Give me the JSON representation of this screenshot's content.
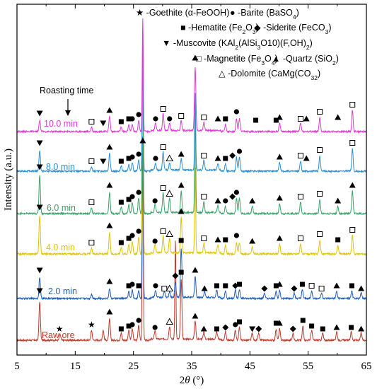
{
  "chart_data": {
    "type": "line",
    "xlabel": "2θ (°)",
    "xlabel_italic_symbol": "θ",
    "ylabel": "Intensity (a.u.)",
    "xlim": [
      5,
      65
    ],
    "xticks": [
      "5",
      "15",
      "25",
      "35",
      "45",
      "55",
      "65"
    ],
    "annotation": "Roasting time",
    "legend": [
      {
        "marker": "★",
        "text": "-Goethite (α-FeOOH)"
      },
      {
        "marker": "●",
        "text": "-Barite (BaSO",
        "sub": "4",
        "tail": ")"
      },
      {
        "marker": "■",
        "text": "-Hematite (Fe",
        "sub": "2",
        "mid": "O",
        "sub2": "3",
        "tail": ")"
      },
      {
        "marker": "◆",
        "text": "-Siderite (FeCO",
        "sub": "3",
        "tail": ")"
      },
      {
        "marker": "▼",
        "text": "-Muscovite (KAl",
        "sub": "2",
        "mid": "(AlSi",
        "sub2": "3",
        "tail": "O10)(F,OH)",
        "sub3": "2",
        "tail2": ")"
      },
      {
        "marker": "□",
        "text": "-Magnetite (Fe",
        "sub": "3",
        "mid": "O",
        "sub2": "4",
        "tail": ")"
      },
      {
        "marker": "▲",
        "text": "-Quartz (SiO",
        "sub": "2",
        "tail": ")"
      },
      {
        "marker": "△",
        "text": "-Dolomite (CaMg(CO",
        "sub": "3",
        "tail": ")",
        "sub2": "2",
        "tail2": ""
      }
    ],
    "series": [
      {
        "name": "Raw ore",
        "color": "#c0392b",
        "peaks": [
          [
            8.9,
            55
          ],
          [
            12.4,
            8
          ],
          [
            17.8,
            14
          ],
          [
            19.8,
            14
          ],
          [
            20.9,
            30
          ],
          [
            22.9,
            10
          ],
          [
            24.2,
            14
          ],
          [
            24.8,
            16
          ],
          [
            25.9,
            22
          ],
          [
            26.6,
            270
          ],
          [
            28.7,
            12
          ],
          [
            31.2,
            18
          ],
          [
            32.2,
            140
          ],
          [
            33.2,
            85
          ],
          [
            35.6,
            26
          ],
          [
            37.1,
            10
          ],
          [
            39.3,
            10
          ],
          [
            40.8,
            12
          ],
          [
            42.5,
            14
          ],
          [
            43.2,
            18
          ],
          [
            45.4,
            10
          ],
          [
            46.5,
            10
          ],
          [
            49.5,
            16
          ],
          [
            50.1,
            16
          ],
          [
            52.4,
            10
          ],
          [
            54.1,
            20
          ],
          [
            55.6,
            14
          ],
          [
            57.5,
            10
          ],
          [
            59.9,
            12
          ],
          [
            62.4,
            12
          ],
          [
            64.1,
            10
          ]
        ]
      },
      {
        "name": "2.0 min",
        "color": "#1f5fbf",
        "peaks": [
          [
            8.9,
            30
          ],
          [
            17.8,
            6
          ],
          [
            20.9,
            14
          ],
          [
            24.2,
            10
          ],
          [
            24.8,
            12
          ],
          [
            25.9,
            10
          ],
          [
            26.6,
            230
          ],
          [
            28.8,
            10
          ],
          [
            30.3,
            8
          ],
          [
            31.2,
            8
          ],
          [
            32.2,
            22
          ],
          [
            33.2,
            70
          ],
          [
            35.6,
            30
          ],
          [
            37.2,
            8
          ],
          [
            39.3,
            10
          ],
          [
            40.8,
            10
          ],
          [
            42.5,
            12
          ],
          [
            43.2,
            12
          ],
          [
            47.5,
            8
          ],
          [
            49.5,
            10
          ],
          [
            50.1,
            12
          ],
          [
            52.6,
            8
          ],
          [
            54.0,
            12
          ],
          [
            55.6,
            10
          ],
          [
            57.3,
            8
          ],
          [
            59.9,
            10
          ],
          [
            62.5,
            10
          ],
          [
            64.1,
            8
          ]
        ]
      },
      {
        "name": "4.0 min",
        "color": "#e3c400",
        "peaks": [
          [
            8.9,
            55
          ],
          [
            17.8,
            8
          ],
          [
            20.9,
            30
          ],
          [
            22.9,
            10
          ],
          [
            24.2,
            14
          ],
          [
            24.8,
            18
          ],
          [
            25.9,
            24
          ],
          [
            26.6,
            260
          ],
          [
            28.7,
            12
          ],
          [
            30.1,
            24
          ],
          [
            31.2,
            20
          ],
          [
            33.2,
            50
          ],
          [
            35.6,
            120
          ],
          [
            37.1,
            14
          ],
          [
            39.5,
            12
          ],
          [
            40.8,
            12
          ],
          [
            42.7,
            16
          ],
          [
            43.2,
            16
          ],
          [
            45.4,
            10
          ],
          [
            50.1,
            14
          ],
          [
            53.7,
            14
          ],
          [
            57.0,
            20
          ],
          [
            60.1,
            12
          ],
          [
            62.6,
            26
          ]
        ]
      },
      {
        "name": "6.0 min",
        "color": "#3aa36a",
        "peaks": [
          [
            8.9,
            55
          ],
          [
            17.8,
            8
          ],
          [
            20.9,
            30
          ],
          [
            22.9,
            10
          ],
          [
            24.2,
            12
          ],
          [
            24.8,
            16
          ],
          [
            25.9,
            22
          ],
          [
            26.6,
            230
          ],
          [
            28.7,
            12
          ],
          [
            30.1,
            28
          ],
          [
            31.2,
            20
          ],
          [
            33.2,
            30
          ],
          [
            35.6,
            140
          ],
          [
            37.1,
            16
          ],
          [
            39.5,
            10
          ],
          [
            40.8,
            10
          ],
          [
            42.7,
            22
          ],
          [
            43.2,
            22
          ],
          [
            45.4,
            10
          ],
          [
            50.1,
            14
          ],
          [
            53.7,
            16
          ],
          [
            57.0,
            20
          ],
          [
            60.1,
            10
          ],
          [
            62.6,
            32
          ]
        ]
      },
      {
        "name": "8.0 min",
        "color": "#2b8fd6",
        "peaks": [
          [
            8.9,
            30
          ],
          [
            17.8,
            6
          ],
          [
            20.9,
            25
          ],
          [
            22.9,
            8
          ],
          [
            24.2,
            10
          ],
          [
            24.8,
            12
          ],
          [
            25.9,
            16
          ],
          [
            26.6,
            200
          ],
          [
            28.8,
            10
          ],
          [
            30.1,
            26
          ],
          [
            31.2,
            10
          ],
          [
            33.2,
            16
          ],
          [
            35.6,
            110
          ],
          [
            37.1,
            14
          ],
          [
            39.5,
            10
          ],
          [
            40.8,
            10
          ],
          [
            42.7,
            20
          ],
          [
            43.2,
            20
          ],
          [
            50.1,
            12
          ],
          [
            53.7,
            14
          ],
          [
            57.0,
            22
          ],
          [
            62.6,
            32
          ]
        ]
      },
      {
        "name": "10.0 min",
        "color": "#e23ad6",
        "peaks": [
          [
            8.9,
            16
          ],
          [
            17.8,
            6
          ],
          [
            20.9,
            22
          ],
          [
            22.9,
            6
          ],
          [
            24.2,
            10
          ],
          [
            24.8,
            10
          ],
          [
            25.9,
            16
          ],
          [
            26.6,
            160
          ],
          [
            28.8,
            10
          ],
          [
            30.1,
            24
          ],
          [
            31.2,
            10
          ],
          [
            33.2,
            14
          ],
          [
            35.6,
            90
          ],
          [
            37.1,
            12
          ],
          [
            40.8,
            10
          ],
          [
            42.7,
            18
          ],
          [
            43.2,
            18
          ],
          [
            50.1,
            12
          ],
          [
            53.7,
            12
          ],
          [
            57.0,
            20
          ],
          [
            62.6,
            30
          ]
        ]
      }
    ]
  }
}
